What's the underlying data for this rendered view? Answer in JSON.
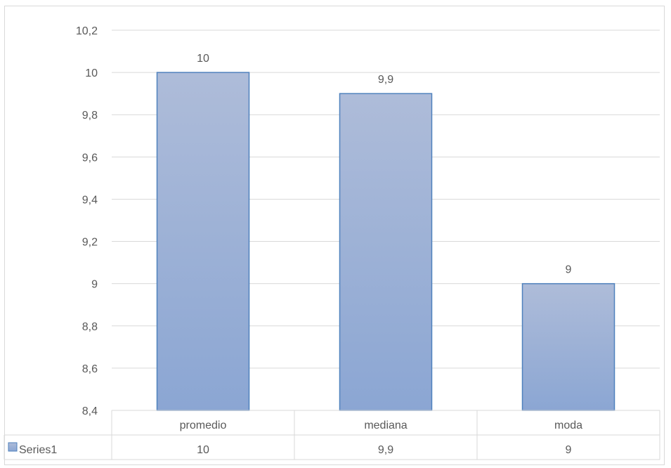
{
  "chart_data": {
    "type": "bar",
    "categories": [
      "promedio",
      "mediana",
      "moda"
    ],
    "series": [
      {
        "name": "Series1",
        "values": [
          10,
          9.9,
          9
        ]
      }
    ],
    "data_labels": [
      "10",
      "9,9",
      "9"
    ],
    "table_values": [
      "10",
      "9,9",
      "9"
    ],
    "ylim": [
      8.4,
      10.2
    ],
    "y_ticks": [
      8.4,
      8.6,
      8.8,
      9,
      9.2,
      9.4,
      9.6,
      9.8,
      10,
      10.2
    ],
    "y_tick_labels": [
      "8,4",
      "8,6",
      "8,8",
      "9",
      "9,2",
      "9,4",
      "9,6",
      "9,8",
      "10",
      "10,2"
    ],
    "grid": true,
    "legend": "data-table",
    "colors": {
      "bar_top": "#aebcd9",
      "bar_bottom": "#8ba6d3",
      "bar_stroke": "#4f81bd",
      "grid": "#d9d9d9"
    }
  }
}
